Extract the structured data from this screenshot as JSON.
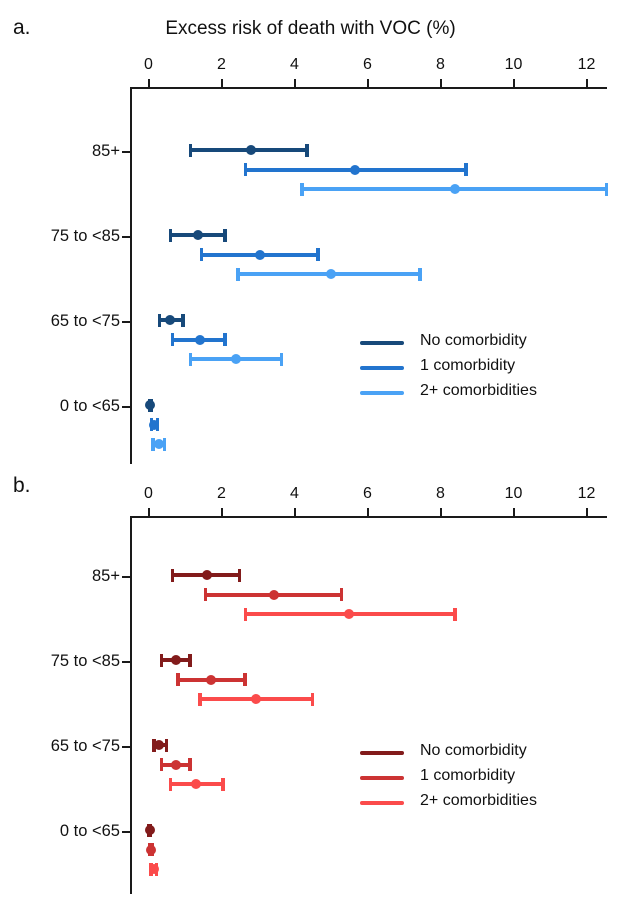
{
  "figure_title": "Excess risk of death with VOC (%)",
  "chart_data": [
    {
      "type": "scatter",
      "subtype": "forest-errorbar",
      "panel_label": "a.",
      "title": "Excess risk of death with VOC (%)",
      "xlabel": "Excess risk of death with VOC (%)",
      "xticks": [
        0,
        2,
        4,
        6,
        8,
        10,
        12
      ],
      "xlim": [
        0,
        12.6
      ],
      "categories": [
        "85+",
        "75 to <85",
        "65 to <75",
        "0 to <65"
      ],
      "legend_position": "right-middle",
      "series": [
        {
          "name": "No comorbidity",
          "color": "#17497a",
          "estimates": [
            2.8,
            1.35,
            0.6,
            0.05
          ],
          "ci_low": [
            1.15,
            0.6,
            0.3,
            0.02
          ],
          "ci_high": [
            4.35,
            2.1,
            0.95,
            0.09
          ]
        },
        {
          "name": "1 comorbidity",
          "color": "#2274ce",
          "estimates": [
            5.65,
            3.05,
            1.4,
            0.16
          ],
          "ci_low": [
            2.65,
            1.45,
            0.65,
            0.08
          ],
          "ci_high": [
            8.7,
            4.65,
            2.1,
            0.26
          ]
        },
        {
          "name": "2+ comorbidities",
          "color": "#4aa2f5",
          "estimates": [
            8.4,
            5.0,
            2.4,
            0.28
          ],
          "ci_low": [
            4.2,
            2.45,
            1.15,
            0.12
          ],
          "ci_high": [
            12.55,
            7.45,
            3.65,
            0.44
          ]
        }
      ]
    },
    {
      "type": "scatter",
      "subtype": "forest-errorbar",
      "panel_label": "b.",
      "title": "",
      "xlabel": "",
      "xticks": [
        0,
        2,
        4,
        6,
        8,
        10,
        12
      ],
      "xlim": [
        0,
        12.6
      ],
      "categories": [
        "85+",
        "75 to <85",
        "65 to <75",
        "0 to <65"
      ],
      "legend_position": "right-middle",
      "series": [
        {
          "name": "No comorbidity",
          "color": "#821b1b",
          "estimates": [
            1.6,
            0.75,
            0.3,
            0.03
          ],
          "ci_low": [
            0.65,
            0.35,
            0.15,
            0.01
          ],
          "ci_high": [
            2.5,
            1.15,
            0.5,
            0.06
          ]
        },
        {
          "name": "1 comorbidity",
          "color": "#cc3333",
          "estimates": [
            3.45,
            1.7,
            0.75,
            0.07
          ],
          "ci_low": [
            1.55,
            0.8,
            0.35,
            0.03
          ],
          "ci_high": [
            5.3,
            2.65,
            1.15,
            0.12
          ]
        },
        {
          "name": "2+ comorbidities",
          "color": "#fb4b4b",
          "estimates": [
            5.5,
            2.95,
            1.3,
            0.14
          ],
          "ci_low": [
            2.65,
            1.4,
            0.6,
            0.06
          ],
          "ci_high": [
            8.4,
            4.5,
            2.05,
            0.22
          ]
        }
      ]
    }
  ]
}
